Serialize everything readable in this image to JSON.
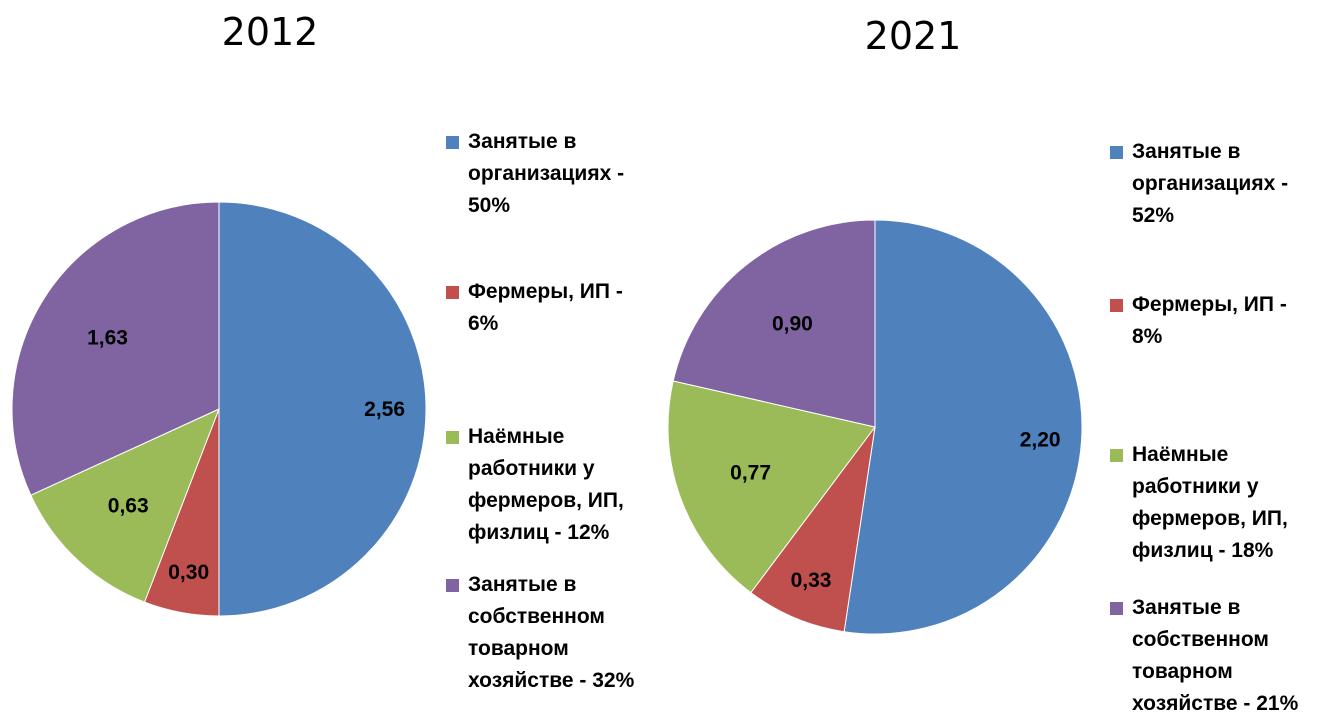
{
  "chart_data": [
    {
      "type": "pie",
      "title": "2012",
      "categories": [
        "Занятые в организациях - 50%",
        "Фермеры, ИП - 6%",
        "Наёмные работники у фермеров, ИП, физлиц - 12%",
        "Занятые в собственном товарном хозяйстве - 32%"
      ],
      "values": [
        2.56,
        0.3,
        0.63,
        1.63
      ],
      "value_labels": [
        "2,56",
        "0,30",
        "0,63",
        "1,63"
      ],
      "colors": [
        "#4F81BD",
        "#C0504D",
        "#9BBB59",
        "#8064A2"
      ],
      "legend": [
        {
          "label": "Занятые в\nорганизациях -\n50%",
          "color": "#4F81BD"
        },
        {
          "label": "Фермеры, ИП -\n6%",
          "color": "#C0504D"
        },
        {
          "label": "Наёмные\nработники у\nфермеров, ИП,\nфизлиц - 12%",
          "color": "#9BBB59"
        },
        {
          "label": "Занятые в\nсобственном\nтоварном\nхозяйстве - 32%",
          "color": "#8064A2"
        }
      ],
      "legend_position": "right"
    },
    {
      "type": "pie",
      "title": "2021",
      "categories": [
        "Занятые в организациях - 52%",
        "Фермеры, ИП - 8%",
        "Наёмные работники у фермеров, ИП, физлиц - 18%",
        "Занятые в собственном товарном хозяйстве - 21%"
      ],
      "values": [
        2.2,
        0.33,
        0.77,
        0.9
      ],
      "value_labels": [
        "2,20",
        "0,33",
        "0,77",
        "0,90"
      ],
      "colors": [
        "#4F81BD",
        "#C0504D",
        "#9BBB59",
        "#8064A2"
      ],
      "legend": [
        {
          "label": "Занятые в\nорганизациях -\n52%",
          "color": "#4F81BD"
        },
        {
          "label": "Фермеры, ИП -\n8%",
          "color": "#C0504D"
        },
        {
          "label": "Наёмные\nработники у\nфермеров, ИП,\nфизлиц - 18%",
          "color": "#9BBB59"
        },
        {
          "label": "Занятые в\nсобственном\nтоварном\nхозяйстве - 21%",
          "color": "#8064A2"
        }
      ],
      "legend_position": "right"
    }
  ]
}
